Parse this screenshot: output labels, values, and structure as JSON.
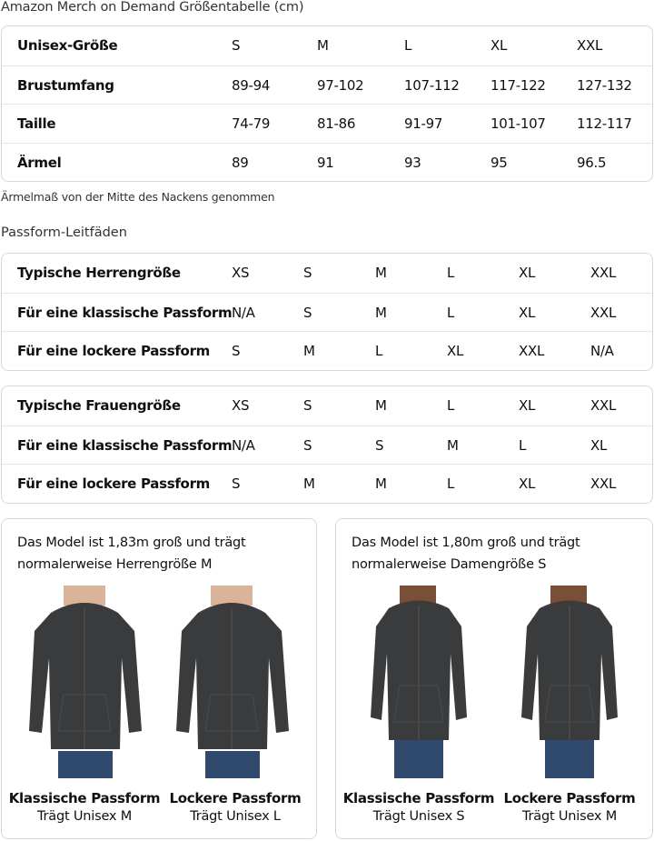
{
  "title": "Amazon Merch on Demand Größentabelle (cm)",
  "size_table": {
    "rows": [
      {
        "label": "Unisex-Größe",
        "values": [
          "S",
          "M",
          "L",
          "XL",
          "XXL"
        ]
      },
      {
        "label": "Brustumfang",
        "values": [
          "89-94",
          "97-102",
          "107-112",
          "117-122",
          "127-132"
        ]
      },
      {
        "label": "Taille",
        "values": [
          "74-79",
          "81-86",
          "91-97",
          "101-107",
          "112-117"
        ]
      },
      {
        "label": "Ärmel",
        "values": [
          "89",
          "91",
          "93",
          "95",
          "96.5"
        ]
      }
    ]
  },
  "note": "Ärmelmaß von der Mitte des Nackens genommen",
  "fit_heading": "Passform-Leitfäden",
  "men_table": {
    "rows": [
      {
        "label": "Typische Herrengröße",
        "values": [
          "XS",
          "S",
          "M",
          "L",
          "XL",
          "XXL"
        ]
      },
      {
        "label": "Für eine klassische Passform",
        "values": [
          "N/A",
          "S",
          "M",
          "L",
          "XL",
          "XXL"
        ]
      },
      {
        "label": "Für eine lockere Passform",
        "values": [
          "S",
          "M",
          "L",
          "XL",
          "XXL",
          "N/A"
        ]
      }
    ]
  },
  "women_table": {
    "rows": [
      {
        "label": "Typische Frauengröße",
        "values": [
          "XS",
          "S",
          "M",
          "L",
          "XL",
          "XXL"
        ]
      },
      {
        "label": "Für eine klassische Passform",
        "values": [
          "N/A",
          "S",
          "S",
          "M",
          "L",
          "XL"
        ]
      },
      {
        "label": "Für eine lockere Passform",
        "values": [
          "S",
          "M",
          "M",
          "L",
          "XL",
          "XXL"
        ]
      }
    ]
  },
  "cards": [
    {
      "line1": "Das Model ist 1,83m groß und trägt",
      "line2": "normalerweise Herrengröße M",
      "models": [
        {
          "title": "Klassische Passform",
          "sub": "Trägt Unisex M"
        },
        {
          "title": "Lockere Passform",
          "sub": "Trägt Unisex L"
        }
      ]
    },
    {
      "line1": "Das Model ist 1,80m groß und trägt",
      "line2": "normalerweise Damengröße S",
      "models": [
        {
          "title": "Klassische Passform",
          "sub": "Trägt Unisex S"
        },
        {
          "title": "Lockere Passform",
          "sub": "Trägt Unisex M"
        }
      ]
    }
  ],
  "colors": {
    "border": "#d5d9d9",
    "hoodie": "#3a3b3d",
    "jeans": "#2f4a6d",
    "skin_light": "#d9b49a",
    "skin_dark": "#7a4f37"
  }
}
